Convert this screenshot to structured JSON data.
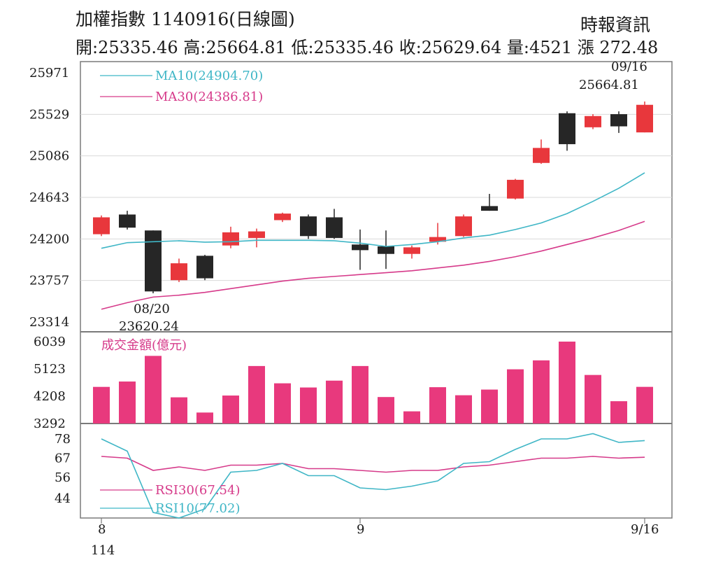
{
  "header": {
    "title": "加權指數 1140916(日線圖)",
    "source": "時報資訊",
    "stats": "開:25335.46 高:25664.81 低:25335.46 收:25629.64 量:4521 漲 272.48"
  },
  "colors": {
    "up": "#e8373c",
    "down": "#262626",
    "ma10": "#3fb6c6",
    "ma30": "#d63a8a",
    "volume": "#e8397d",
    "grid": "#d9d9d9",
    "axis": "#7a7a7a"
  },
  "chart_data": [
    {
      "type": "candlestick",
      "ylim": [
        23314,
        25971
      ],
      "yticks": [
        "25971",
        "25529",
        "25086",
        "24643",
        "24200",
        "23757",
        "23314"
      ],
      "candles": [
        {
          "o": 24250,
          "h": 24450,
          "l": 24230,
          "c": 24430
        },
        {
          "o": 24460,
          "h": 24500,
          "l": 24300,
          "c": 24320
        },
        {
          "o": 24290,
          "h": 24290,
          "l": 23620,
          "c": 23640
        },
        {
          "o": 23760,
          "h": 23990,
          "l": 23740,
          "c": 23940
        },
        {
          "o": 24020,
          "h": 24030,
          "l": 23760,
          "c": 23780
        },
        {
          "o": 24130,
          "h": 24330,
          "l": 24100,
          "c": 24270
        },
        {
          "o": 24210,
          "h": 24310,
          "l": 24110,
          "c": 24280
        },
        {
          "o": 24400,
          "h": 24480,
          "l": 24380,
          "c": 24470
        },
        {
          "o": 24440,
          "h": 24460,
          "l": 24200,
          "c": 24230
        },
        {
          "o": 24430,
          "h": 24520,
          "l": 24200,
          "c": 24210
        },
        {
          "o": 24140,
          "h": 24300,
          "l": 23870,
          "c": 24080
        },
        {
          "o": 24120,
          "h": 24290,
          "l": 23880,
          "c": 24040
        },
        {
          "o": 24040,
          "h": 24130,
          "l": 23990,
          "c": 24110
        },
        {
          "o": 24170,
          "h": 24370,
          "l": 24140,
          "c": 24220
        },
        {
          "o": 24230,
          "h": 24460,
          "l": 24220,
          "c": 24440
        },
        {
          "o": 24550,
          "h": 24680,
          "l": 24500,
          "c": 24500
        },
        {
          "o": 24630,
          "h": 24840,
          "l": 24620,
          "c": 24830
        },
        {
          "o": 25010,
          "h": 25260,
          "l": 25000,
          "c": 25170
        },
        {
          "o": 25540,
          "h": 25560,
          "l": 25140,
          "c": 25210
        },
        {
          "o": 25390,
          "h": 25530,
          "l": 25370,
          "c": 25510
        },
        {
          "o": 25530,
          "h": 25560,
          "l": 25330,
          "c": 25400
        },
        {
          "o": 25335.46,
          "h": 25664.81,
          "l": 25335.46,
          "c": 25629.64
        }
      ],
      "ma10": [
        24100,
        24160,
        24170,
        24180,
        24165,
        24170,
        24185,
        24185,
        24185,
        24180,
        24155,
        24120,
        24140,
        24170,
        24210,
        24240,
        24300,
        24370,
        24470,
        24600,
        24740,
        24904.7
      ],
      "ma30": [
        23450,
        23520,
        23580,
        23600,
        23630,
        23670,
        23710,
        23750,
        23780,
        23800,
        23820,
        23840,
        23860,
        23890,
        23920,
        23960,
        24010,
        24070,
        24140,
        24210,
        24290,
        24386.81
      ],
      "legend": [
        {
          "label": "MA10(24904.70)",
          "series": "ma10"
        },
        {
          "label": "MA30(24386.81)",
          "series": "ma30"
        }
      ],
      "annotations": [
        {
          "text": "09/16",
          "target": "high",
          "index": 21
        },
        {
          "text": "25664.81",
          "target": "high",
          "index": 21
        },
        {
          "text": "08/20",
          "target": "low",
          "index": 2
        },
        {
          "text": "23620.24",
          "target": "low",
          "index": 2
        }
      ]
    },
    {
      "type": "bar",
      "title": "成交金額(億元)",
      "ylim": [
        3292,
        6039
      ],
      "yticks": [
        "6039",
        "5123",
        "4208",
        "3292"
      ],
      "values": [
        4520,
        4700,
        5560,
        4170,
        3660,
        4230,
        5220,
        4640,
        4500,
        4730,
        5220,
        4180,
        3700,
        4510,
        4240,
        4430,
        5110,
        5410,
        6039,
        4920,
        4040,
        4521
      ]
    },
    {
      "type": "line",
      "ylim": [
        40,
        80
      ],
      "yticks": [
        "78",
        "67",
        "56",
        "44"
      ],
      "rsi10": [
        78,
        71,
        36,
        30,
        38,
        59,
        60,
        64,
        57,
        57,
        50,
        49,
        51,
        54,
        64,
        65,
        72,
        78,
        78,
        81,
        76,
        77.02
      ],
      "rsi30": [
        68,
        67,
        60,
        62,
        60,
        63,
        63,
        64,
        61,
        61,
        60,
        59,
        60,
        60,
        62,
        63,
        65,
        67,
        67,
        68,
        67,
        67.54
      ],
      "legend": [
        {
          "label": "RSI30(67.54)",
          "series": "rsi30"
        },
        {
          "label": "RSI10(77.02)",
          "series": "rsi10"
        }
      ]
    }
  ],
  "xaxis": {
    "labels": [
      {
        "text": "8",
        "index": 0
      },
      {
        "text": "114",
        "index": 0,
        "row": 2
      },
      {
        "text": "9",
        "index": 10
      },
      {
        "text": "9/16",
        "index": 21
      }
    ]
  }
}
